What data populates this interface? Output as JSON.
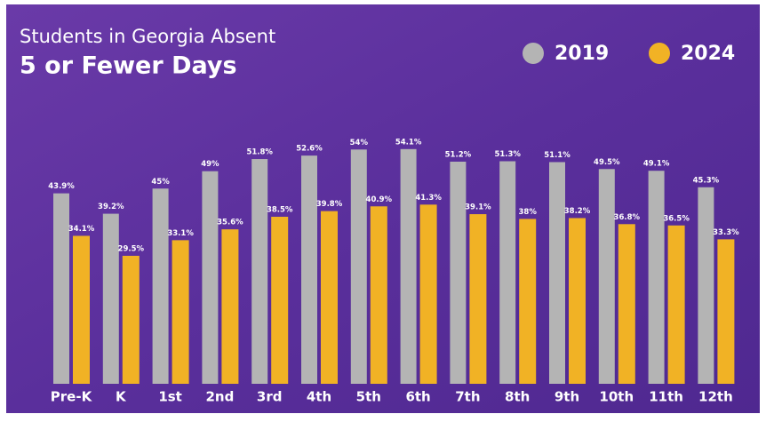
{
  "chart_data": {
    "type": "bar",
    "title": "Students in Georgia Absent",
    "subtitle": "5 or Fewer Days",
    "categories": [
      "Pre-K",
      "K",
      "1st",
      "2nd",
      "3rd",
      "4th",
      "5th",
      "6th",
      "7th",
      "8th",
      "9th",
      "10th",
      "11th",
      "12th"
    ],
    "series": [
      {
        "name": "2019",
        "color": "#b4b4b4",
        "values": [
          43.9,
          39.2,
          45,
          49,
          51.8,
          52.6,
          54,
          54.1,
          51.2,
          51.3,
          51.1,
          49.5,
          49.1,
          45.3
        ],
        "value_labels": [
          "43.9%",
          "39.2%",
          "45%",
          "49%",
          "51.8%",
          "52.6%",
          "54%",
          "54.1%",
          "51.2%",
          "51.3%",
          "51.1%",
          "49.5%",
          "49.1%",
          "45.3%"
        ]
      },
      {
        "name": "2024",
        "color": "#f1b225",
        "values": [
          34.1,
          29.5,
          33.1,
          35.6,
          38.5,
          39.8,
          40.9,
          41.3,
          39.1,
          38,
          38.2,
          36.8,
          36.5,
          33.3
        ],
        "value_labels": [
          "34.1%",
          "29.5%",
          "33.1%",
          "35.6%",
          "38.5%",
          "39.8%",
          "40.9%",
          "41.3%",
          "39.1%",
          "38%",
          "38.2%",
          "36.8%",
          "36.5%",
          "33.3%"
        ]
      }
    ],
    "ylim": [
      0,
      60
    ],
    "legend": "top-right"
  }
}
